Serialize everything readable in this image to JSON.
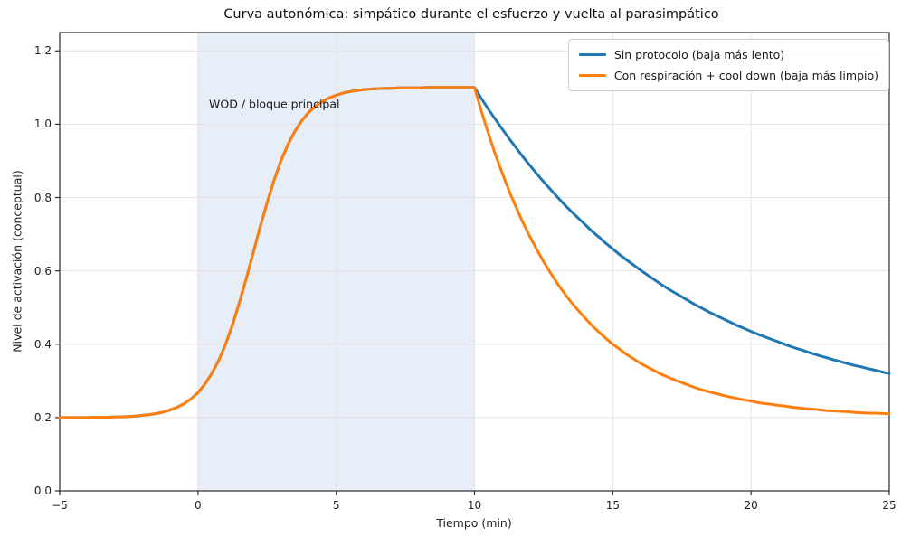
{
  "chart_data": {
    "type": "line",
    "title": "Curva autonómica: simpático durante el esfuerzo y vuelta al parasimpático",
    "xlabel": "Tiempo (min)",
    "ylabel": "Nivel de activación (conceptual)",
    "xlim": [
      -5,
      25
    ],
    "ylim": [
      0,
      1.25
    ],
    "grid": true,
    "legend_position": "upper right",
    "xticks": {
      "values": [
        -5,
        0,
        5,
        10,
        15,
        20,
        25
      ],
      "labels": [
        "−5",
        "0",
        "5",
        "10",
        "15",
        "20",
        "25"
      ]
    },
    "yticks": {
      "values": [
        0.0,
        0.2,
        0.4,
        0.6,
        0.8,
        1.0,
        1.2
      ],
      "labels": [
        "0.0",
        "0.2",
        "0.4",
        "0.6",
        "0.8",
        "1.0",
        "1.2"
      ]
    },
    "band": {
      "x0": 0,
      "x1": 10,
      "color": "#e7eef7",
      "label": "WOD / bloque principal",
      "label_x": 0.4,
      "label_y": 1.055
    },
    "series": [
      {
        "name": "Sin protocolo (baja más lento)",
        "color": "#1f77b4",
        "x_start": -5,
        "x_step": 0.25,
        "y": [
          0.2,
          0.2,
          0.2,
          0.2,
          0.2,
          0.201,
          0.201,
          0.201,
          0.202,
          0.202,
          0.203,
          0.204,
          0.206,
          0.208,
          0.211,
          0.215,
          0.221,
          0.228,
          0.238,
          0.251,
          0.268,
          0.291,
          0.32,
          0.356,
          0.4,
          0.453,
          0.514,
          0.58,
          0.65,
          0.72,
          0.786,
          0.847,
          0.9,
          0.944,
          0.98,
          1.009,
          1.032,
          1.049,
          1.062,
          1.072,
          1.079,
          1.085,
          1.089,
          1.092,
          1.094,
          1.096,
          1.097,
          1.098,
          1.098,
          1.099,
          1.099,
          1.099,
          1.099,
          1.1,
          1.1,
          1.1,
          1.1,
          1.1,
          1.1,
          1.1,
          1.1,
          1.07,
          1.041,
          1.014,
          0.987,
          0.961,
          0.936,
          0.911,
          0.888,
          0.865,
          0.843,
          0.822,
          0.801,
          0.781,
          0.762,
          0.744,
          0.726,
          0.708,
          0.692,
          0.675,
          0.66,
          0.644,
          0.63,
          0.616,
          0.602,
          0.589,
          0.576,
          0.563,
          0.551,
          0.54,
          0.529,
          0.518,
          0.507,
          0.497,
          0.487,
          0.478,
          0.469,
          0.46,
          0.451,
          0.443,
          0.435,
          0.427,
          0.42,
          0.413,
          0.406,
          0.399,
          0.392,
          0.386,
          0.38,
          0.374,
          0.368,
          0.363,
          0.357,
          0.352,
          0.347,
          0.342,
          0.338,
          0.333,
          0.329,
          0.324,
          0.32
        ]
      },
      {
        "name": "Con respiración + cool down (baja más limpio)",
        "color": "#ff7f0e",
        "x_start": -5,
        "x_step": 0.25,
        "y": [
          0.2,
          0.2,
          0.2,
          0.2,
          0.2,
          0.201,
          0.201,
          0.201,
          0.202,
          0.202,
          0.203,
          0.204,
          0.206,
          0.208,
          0.211,
          0.215,
          0.221,
          0.228,
          0.238,
          0.251,
          0.268,
          0.291,
          0.32,
          0.356,
          0.4,
          0.453,
          0.514,
          0.58,
          0.65,
          0.72,
          0.786,
          0.847,
          0.9,
          0.944,
          0.98,
          1.009,
          1.032,
          1.049,
          1.062,
          1.072,
          1.079,
          1.085,
          1.089,
          1.092,
          1.094,
          1.096,
          1.097,
          1.098,
          1.098,
          1.099,
          1.099,
          1.099,
          1.099,
          1.1,
          1.1,
          1.1,
          1.1,
          1.1,
          1.1,
          1.1,
          1.1,
          1.035,
          0.975,
          0.919,
          0.867,
          0.818,
          0.774,
          0.732,
          0.694,
          0.658,
          0.625,
          0.594,
          0.565,
          0.539,
          0.514,
          0.492,
          0.471,
          0.451,
          0.433,
          0.416,
          0.4,
          0.386,
          0.372,
          0.36,
          0.348,
          0.338,
          0.328,
          0.318,
          0.31,
          0.302,
          0.295,
          0.288,
          0.281,
          0.275,
          0.27,
          0.265,
          0.26,
          0.256,
          0.252,
          0.248,
          0.245,
          0.241,
          0.238,
          0.236,
          0.233,
          0.231,
          0.228,
          0.226,
          0.224,
          0.223,
          0.221,
          0.219,
          0.218,
          0.217,
          0.216,
          0.214,
          0.213,
          0.212,
          0.212,
          0.211,
          0.21
        ]
      }
    ]
  }
}
